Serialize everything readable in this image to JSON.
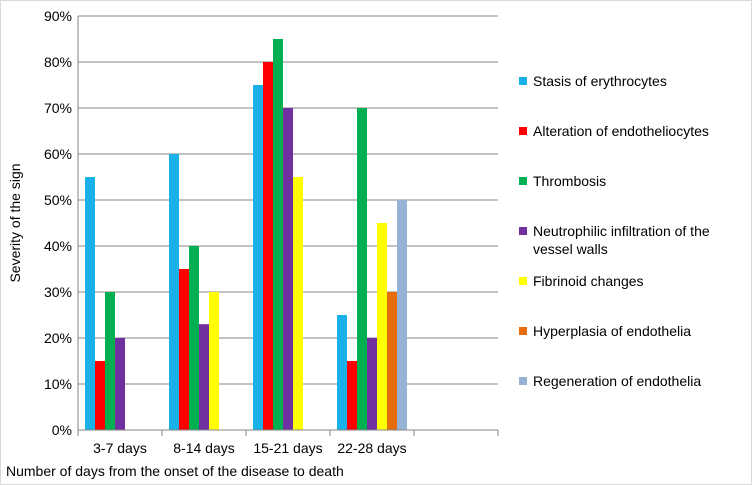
{
  "chart_data": {
    "type": "bar",
    "xlabel": "Number of days from the onset of the disease to death",
    "ylabel": "Severity of the sign",
    "ylim": [
      0,
      90
    ],
    "yticks": [
      "0%",
      "10%",
      "20%",
      "30%",
      "40%",
      "50%",
      "60%",
      "70%",
      "80%",
      "90%"
    ],
    "y_unit": "%",
    "categories": [
      "3-7 days",
      "8-14 days",
      "15-21 days",
      "22-28 days",
      ""
    ],
    "grid": true,
    "legend_position": "right",
    "series": [
      {
        "name": "Stasis of erythrocytes",
        "color": "#1ab0e8",
        "values": [
          55,
          60,
          75,
          25,
          null
        ]
      },
      {
        "name": "Alteration of endotheliocytes",
        "color": "#ff0000",
        "values": [
          15,
          35,
          80,
          15,
          null
        ]
      },
      {
        "name": "Thrombosis",
        "color": "#00b050",
        "values": [
          30,
          40,
          85,
          70,
          null
        ]
      },
      {
        "name": "Neutrophilic infiltration of the vessel walls",
        "legend_lines": [
          "Neutrophilic infiltration of the",
          "vessel walls"
        ],
        "color": "#7030a0",
        "values": [
          20,
          23,
          70,
          20,
          null
        ]
      },
      {
        "name": "Fibrinoid changes",
        "color": "#ffff00",
        "values": [
          0,
          30,
          55,
          45,
          null
        ]
      },
      {
        "name": "Hyperplasia of endothelia",
        "color": "#e46c0a",
        "values": [
          0,
          0,
          0,
          30,
          null
        ]
      },
      {
        "name": "Regeneration of endothelia",
        "color": "#95b3d7",
        "values": [
          0,
          0,
          0,
          50,
          null
        ]
      }
    ]
  }
}
